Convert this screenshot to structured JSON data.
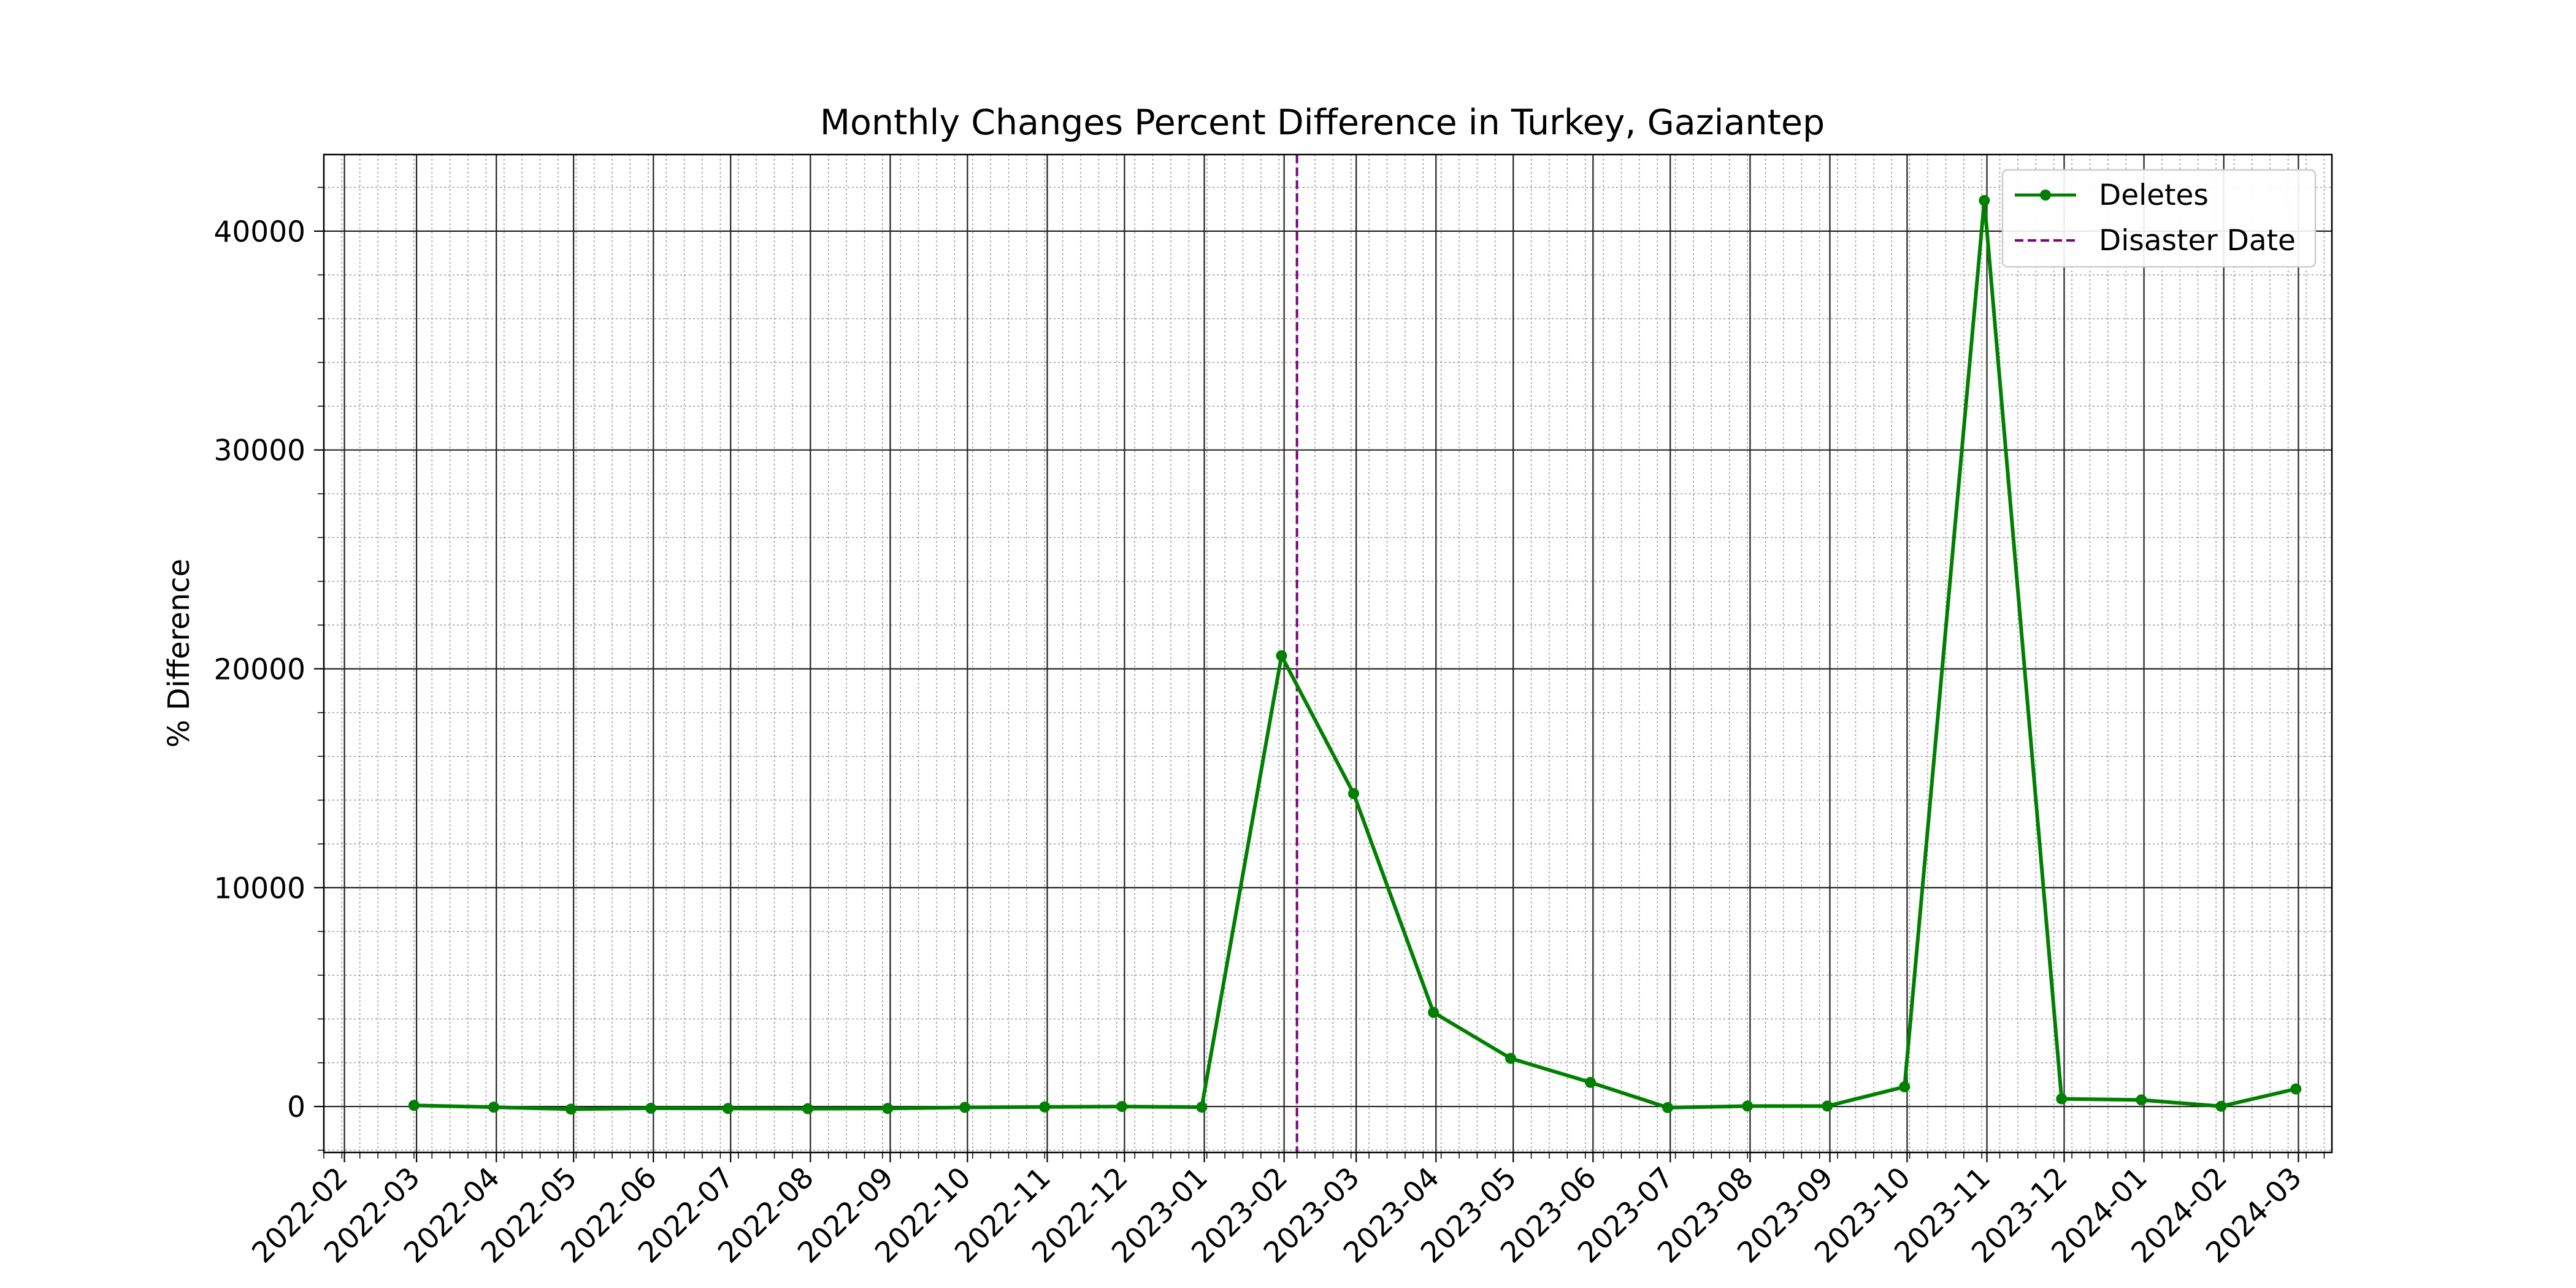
{
  "chart_data": {
    "type": "line",
    "title": "Monthly Changes Percent Difference in Turkey, Gaziantep",
    "xlabel": "",
    "ylabel": "% Difference",
    "x_ticks": [
      "2022-02",
      "2022-03",
      "2022-04",
      "2022-05",
      "2022-06",
      "2022-07",
      "2022-08",
      "2022-09",
      "2022-10",
      "2022-11",
      "2022-12",
      "2023-01",
      "2023-02",
      "2023-03",
      "2023-04",
      "2023-05",
      "2023-06",
      "2023-07",
      "2023-08",
      "2023-09",
      "2023-10",
      "2023-11",
      "2023-12",
      "2024-01",
      "2024-02",
      "2024-03"
    ],
    "y_ticks": [
      0,
      10000,
      20000,
      30000,
      40000
    ],
    "xlim": [
      "2022-01-24",
      "2024-03-14"
    ],
    "ylim": [
      -2100,
      43500
    ],
    "grid": {
      "major": true,
      "minor": true
    },
    "legend_position": "top-right",
    "series": [
      {
        "name": "Deletes",
        "color": "#008000",
        "marker": "circle",
        "points": [
          {
            "x": "2022-02-28",
            "y": 50
          },
          {
            "x": "2022-03-31",
            "y": -30
          },
          {
            "x": "2022-04-30",
            "y": -120
          },
          {
            "x": "2022-05-31",
            "y": -80
          },
          {
            "x": "2022-06-30",
            "y": -90
          },
          {
            "x": "2022-07-31",
            "y": -100
          },
          {
            "x": "2022-08-31",
            "y": -90
          },
          {
            "x": "2022-09-30",
            "y": -40
          },
          {
            "x": "2022-10-31",
            "y": -20
          },
          {
            "x": "2022-11-30",
            "y": 0
          },
          {
            "x": "2022-12-31",
            "y": -30
          },
          {
            "x": "2023-01-31",
            "y": 20600
          },
          {
            "x": "2023-02-28",
            "y": 14300
          },
          {
            "x": "2023-03-31",
            "y": 4300
          },
          {
            "x": "2023-04-30",
            "y": 2200
          },
          {
            "x": "2023-05-31",
            "y": 1100
          },
          {
            "x": "2023-06-30",
            "y": -50
          },
          {
            "x": "2023-07-31",
            "y": 20
          },
          {
            "x": "2023-08-31",
            "y": 20
          },
          {
            "x": "2023-09-30",
            "y": 900
          },
          {
            "x": "2023-10-31",
            "y": 41400
          },
          {
            "x": "2023-11-30",
            "y": 350
          },
          {
            "x": "2023-12-31",
            "y": 300
          },
          {
            "x": "2024-01-31",
            "y": 10
          },
          {
            "x": "2024-02-29",
            "y": 800
          }
        ]
      }
    ],
    "vline": {
      "name": "Disaster Date",
      "x": "2023-02-06",
      "color": "#800080",
      "style": "dashed"
    }
  }
}
